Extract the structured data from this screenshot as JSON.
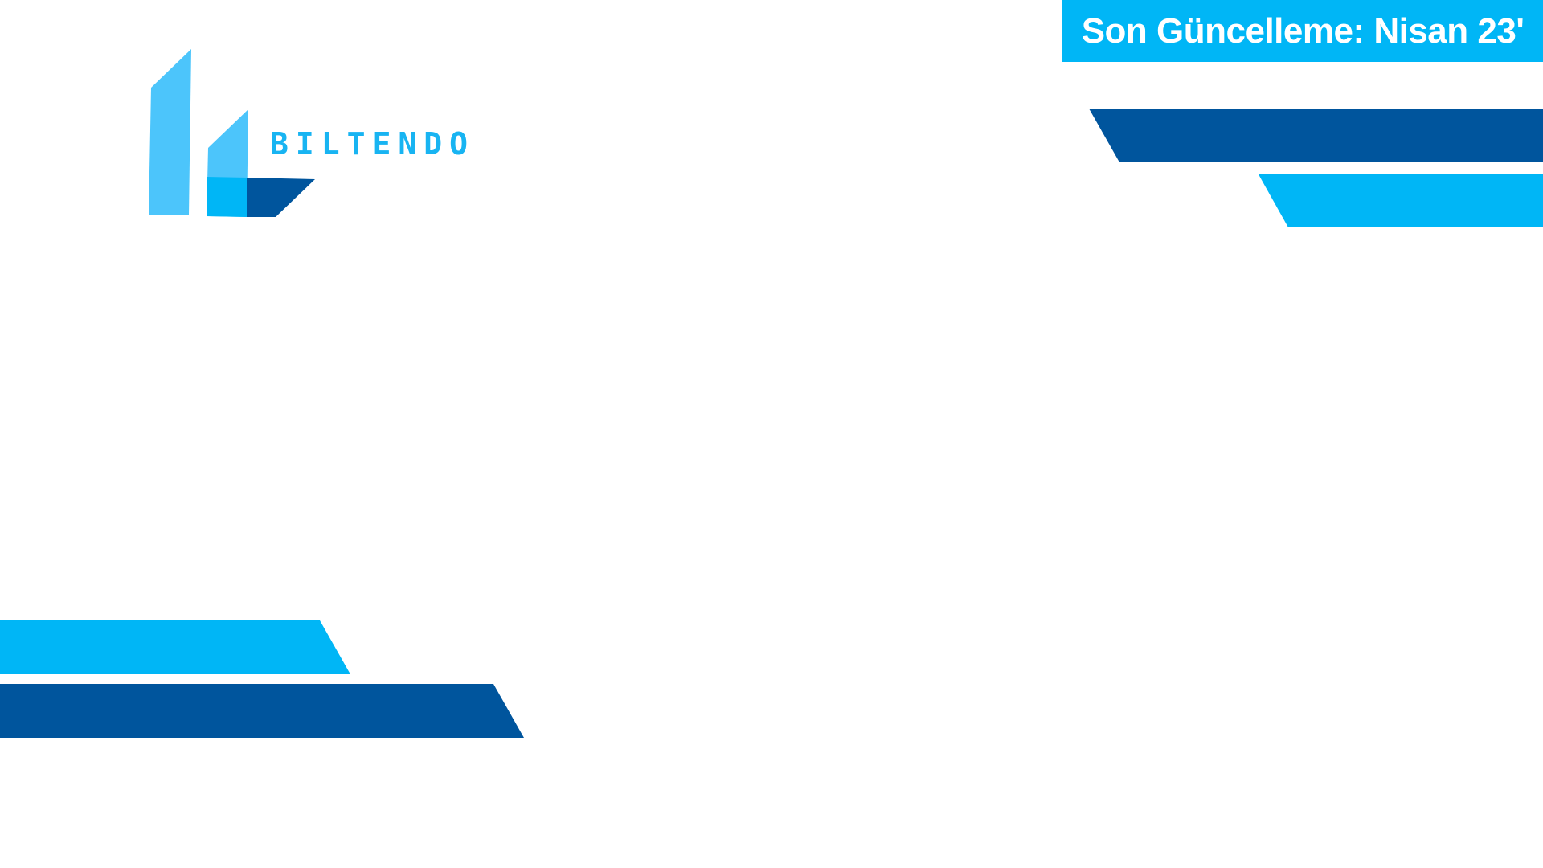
{
  "update_badge": {
    "text": "Son Güncelleme: Nisan 23'",
    "background": "#00B6F6",
    "color": "#FFFFFF"
  },
  "logo": {
    "wordmark": "BILTENDO",
    "wordmark_color": "#18B4F2",
    "mark_light": "#4CC5FB",
    "mark_mid": "#00B6F6",
    "mark_dark": "#00559D"
  },
  "colors": {
    "dark_blue": "#00559D",
    "light_blue": "#00B6F6",
    "background": "#FFFFFF"
  }
}
